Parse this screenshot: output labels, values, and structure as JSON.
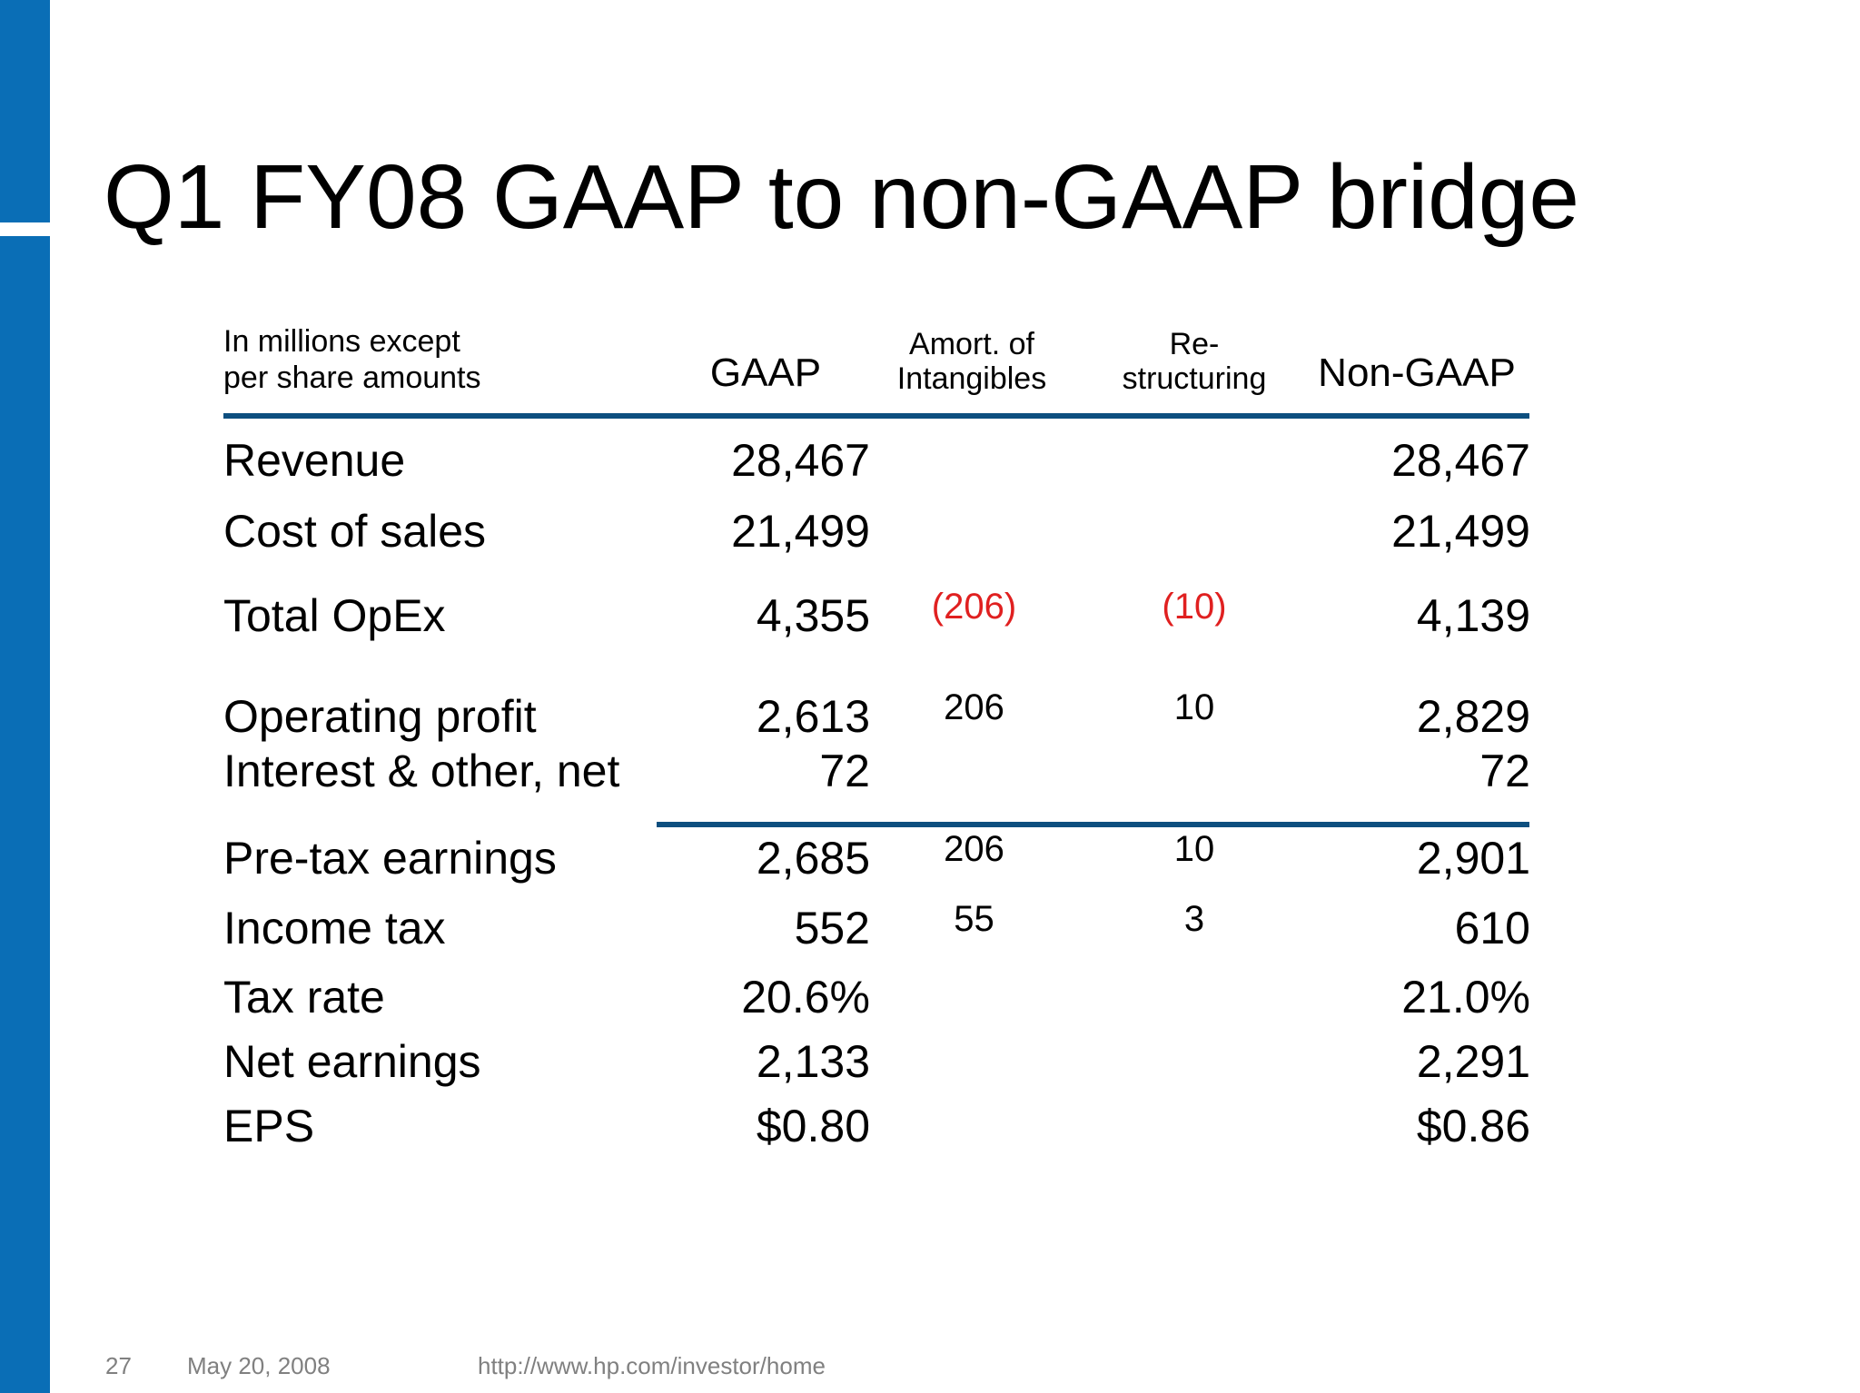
{
  "slide": {
    "title": "Q1 FY08 GAAP to non-GAAP bridge"
  },
  "table": {
    "note_line1": "In millions except",
    "note_line2": "per share amounts",
    "headers": {
      "gaap": "GAAP",
      "amort_line1": "Amort. of",
      "amort_line2": "Intangibles",
      "restr_line1": "Re-",
      "restr_line2": "structuring",
      "non_gaap": "Non-GAAP"
    },
    "rows": [
      {
        "label": "Revenue",
        "gaap": "28,467",
        "amort": "",
        "restr": "",
        "non_gaap": "28,467"
      },
      {
        "label": "Cost of sales",
        "gaap": "21,499",
        "amort": "",
        "restr": "",
        "non_gaap": "21,499"
      },
      {
        "label": "Total OpEx",
        "gaap": "4,355",
        "amort": "(206)",
        "restr": "(10)",
        "non_gaap": "4,139"
      },
      {
        "label": "Operating profit",
        "gaap": "2,613",
        "amort": "206",
        "restr": "10",
        "non_gaap": "2,829"
      },
      {
        "label": "Interest & other, net",
        "gaap": "72",
        "amort": "",
        "restr": "",
        "non_gaap": "72"
      },
      {
        "label": "Pre-tax earnings",
        "gaap": "2,685",
        "amort": "206",
        "restr": "10",
        "non_gaap": "2,901"
      },
      {
        "label": "Income tax",
        "gaap": "552",
        "amort": "55",
        "restr": "3",
        "non_gaap": "610"
      },
      {
        "label": "Tax rate",
        "gaap": "20.6%",
        "amort": "",
        "restr": "",
        "non_gaap": "21.0%"
      },
      {
        "label": "Net earnings",
        "gaap": "2,133",
        "amort": "",
        "restr": "",
        "non_gaap": "2,291"
      },
      {
        "label": "EPS",
        "gaap": "$0.80",
        "amort": "",
        "restr": "",
        "non_gaap": "$0.86"
      }
    ]
  },
  "footer": {
    "page_number": "27",
    "date": "May 20, 2008",
    "url": "http://www.hp.com/investor/home"
  },
  "colors": {
    "sidebar": "#0a6eb6",
    "rule": "#0d4f7f",
    "negative": "#e02020",
    "footer_text": "#808080"
  }
}
